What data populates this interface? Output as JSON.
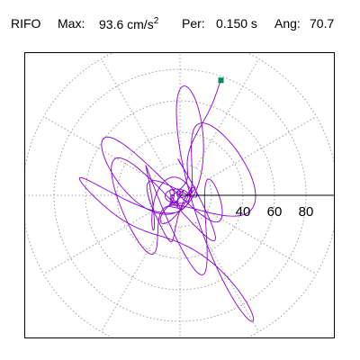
{
  "header": {
    "station": "RIFO",
    "max_label": "Max:",
    "max_value": "93.6",
    "max_unit": "cm/s",
    "max_unit_exp": "2",
    "per_label": "Per:",
    "per_value": "0.150 s",
    "ang_label": "Ang:",
    "ang_value": "70.7"
  },
  "colors": {
    "trace": "#8800d8",
    "marker": "#008c5a",
    "grid": "#888888",
    "axis": "#000000",
    "frame": "#000000"
  },
  "chart_data": {
    "type": "scatter",
    "subtype": "polar particle-motion hodograph",
    "rings": [
      20,
      40,
      60,
      80,
      100
    ],
    "radial_tick_labels": [
      "40",
      "60",
      "80"
    ],
    "r_max": 100,
    "spokes_deg": [
      0,
      30,
      60,
      90,
      120,
      150,
      180,
      210,
      240,
      270,
      300,
      330
    ],
    "max_amplitude": 93.6,
    "max_direction_deg": 70.7,
    "end_marker": {
      "x": 26.0,
      "y": 73.0
    },
    "grid": true,
    "legend": "none"
  }
}
